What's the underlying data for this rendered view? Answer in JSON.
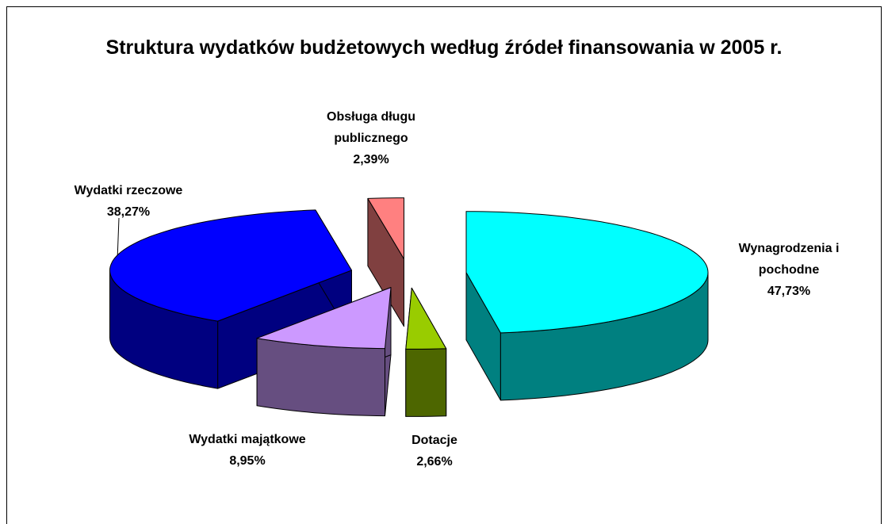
{
  "chart_data": {
    "type": "pie3d",
    "title": "Struktura wydatków budżetowych według źródeł finansowania w 2005 r.",
    "categories": [
      "Wynagrodzenia i pochodne",
      "Dotacje",
      "Wydatki majątkowe",
      "Wydatki rzeczowe",
      "Obsługa długu publicznego"
    ],
    "values": [
      47.73,
      2.66,
      8.95,
      38.27,
      2.39
    ],
    "value_labels": [
      "47,73%",
      "2,66%",
      "8,95%",
      "38,27%",
      "2,39%"
    ],
    "colors": [
      "#00FFFF",
      "#99CC00",
      "#CC99FF",
      "#0000FF",
      "#FF8080"
    ],
    "side_colors": [
      "#008080",
      "#4D6600",
      "#664E80",
      "#000080",
      "#804040"
    ]
  }
}
